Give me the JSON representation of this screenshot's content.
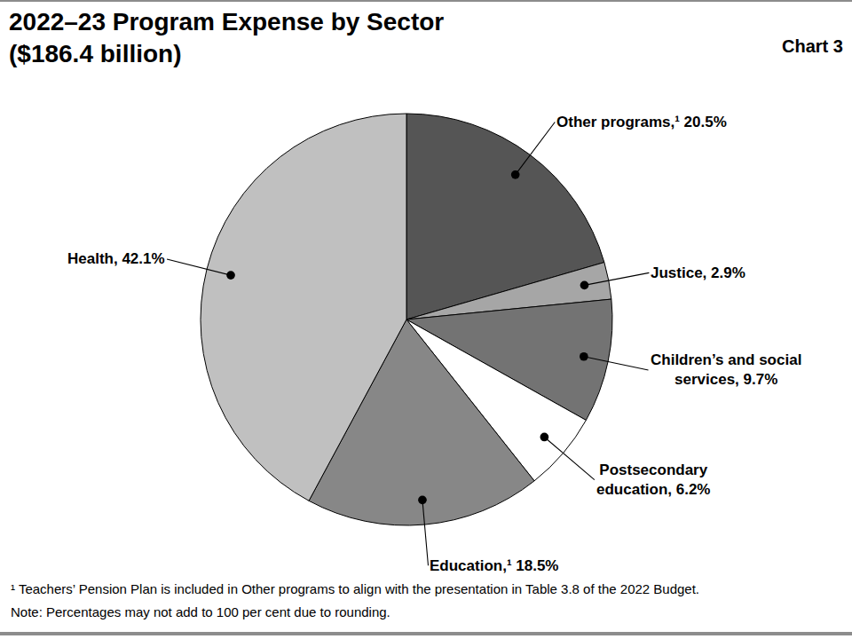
{
  "chart_data": {
    "type": "pie",
    "title": "2022–23 Program Expense by Sector",
    "subtitle": "($186.4 billion)",
    "annotations": [
      "Chart 3",
      "¹ Teachers’ Pension Plan is included in Other programs to align with the presentation in Table 3.8 of the 2022 Budget.",
      "Note: Percentages may not add to 100 per cent due to rounding."
    ],
    "categories": [
      "Other programs",
      "Justice",
      "Children’s and social services",
      "Postsecondary education",
      "Education",
      "Health"
    ],
    "values": [
      20.5,
      2.9,
      9.7,
      6.2,
      18.5,
      42.1
    ],
    "value_labels": [
      "Other programs,¹ 20.5%",
      "Justice, 2.9%",
      "Children’s and social\nservices, 9.7%",
      "Postsecondary\neducation, 6.2%",
      "Education,¹ 18.5%",
      "Health, 42.1%"
    ],
    "colors": [
      "#555555",
      "#a6a6a6",
      "#737373",
      "#ffffff",
      "#878787",
      "#c0c0c0"
    ],
    "data_labels": true
  }
}
